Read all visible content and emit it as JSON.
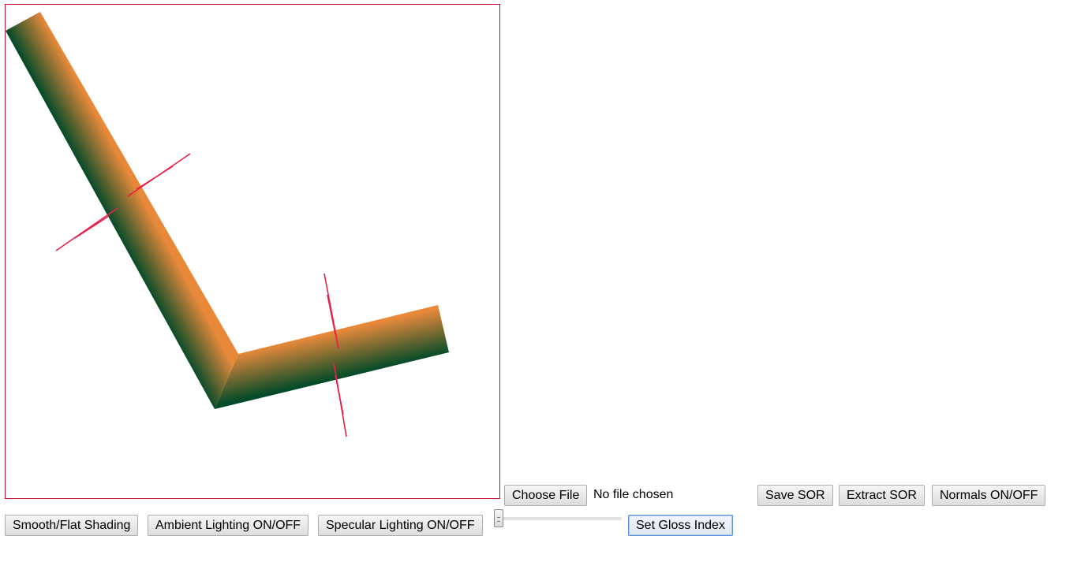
{
  "canvas": {
    "border_color": "#c8102e",
    "gradient_light": "#e8893a",
    "gradient_dark": "#004a28",
    "normal_color": "#e8204a"
  },
  "controls": {
    "choose_file_label": "Choose File",
    "file_status": "No file chosen",
    "save_sor_label": "Save SOR",
    "extract_sor_label": "Extract SOR",
    "normals_toggle_label": "Normals ON/OFF",
    "shading_toggle_label": "Smooth/Flat Shading",
    "ambient_toggle_label": "Ambient Lighting ON/OFF",
    "specular_toggle_label": "Specular Lighting ON/OFF",
    "gloss_slider_value": 0,
    "set_gloss_label": "Set Gloss Index"
  }
}
